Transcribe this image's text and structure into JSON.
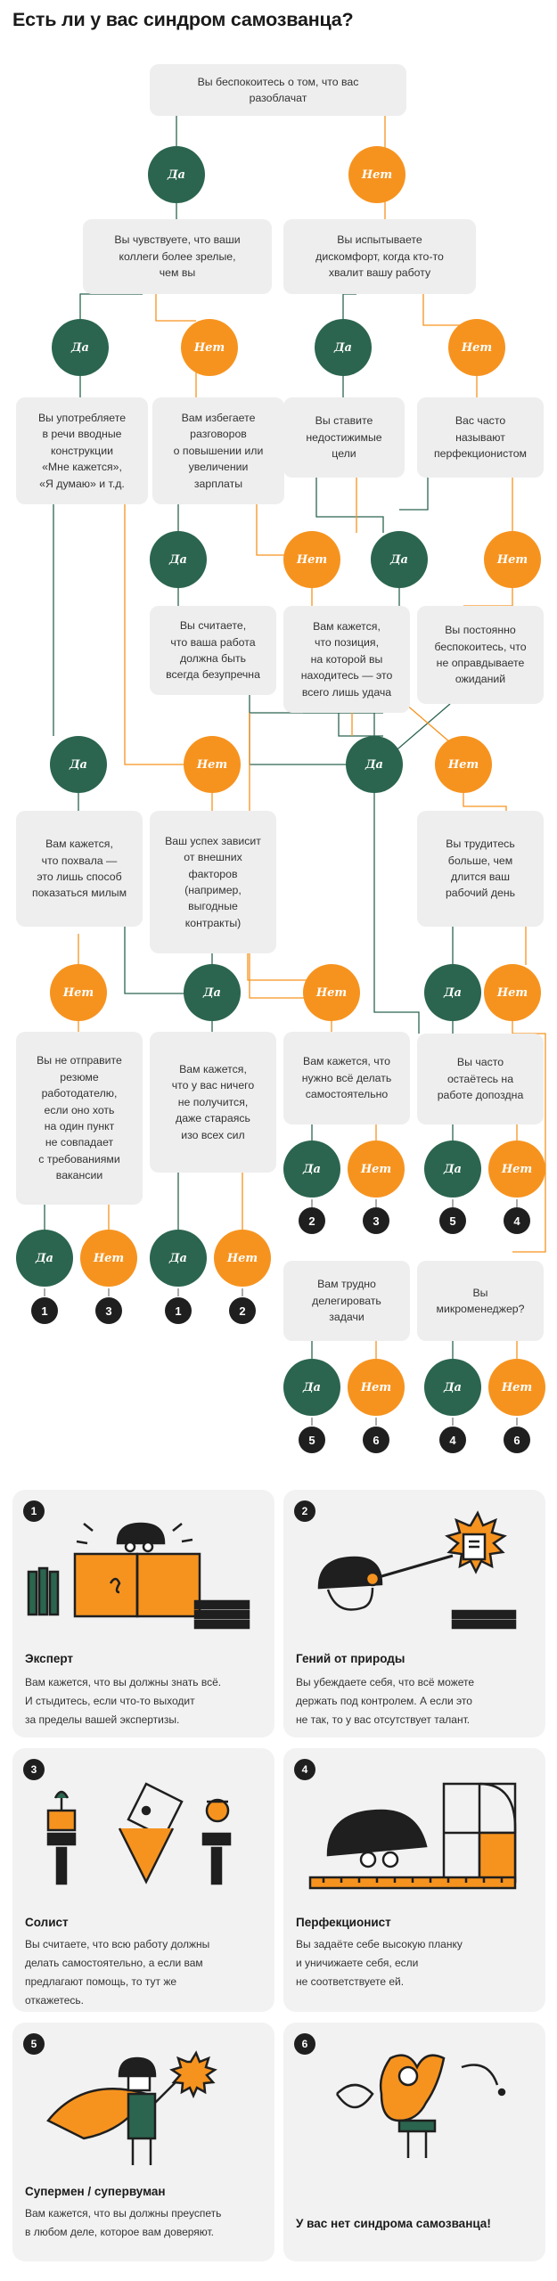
{
  "title": "Есть ли у вас синдром самозванца?",
  "labels": {
    "yes": "Да",
    "no": "Нет"
  },
  "colors": {
    "yes": "#2b654f",
    "no": "#f6931f",
    "box": "#eeeeee",
    "badge": "#1f1f1f"
  },
  "questions": {
    "q1": "Вы беспокоитесь о том, что вас\nразоблачат",
    "q2": "Вы чувствуете, что ваши\nколлеги более зрелые,\nчем вы",
    "q3": "Вы испытываете\nдискомфорт, когда кто-то\nхвалит вашу работу",
    "q4": "Вы употребляете\nв речи вводные\nконструкции\n«Мне кажется»,\n«Я думаю» и т.д.",
    "q5": "Вам избегаете\nразговоров\nо повышении или\nувеличении\nзарплаты",
    "q6": "Вы ставите\nнедостижимые\nцели",
    "q7": "Вас часто\nназывают\nперфекционистом",
    "q8": "Вы считаете,\nчто ваша работа\nдолжна быть\nвсегда безупречна",
    "q9": "Вам кажется,\nчто позиция,\nна которой вы\nнаходитесь — это\nвсего лишь удача",
    "q10": "Вы постоянно\nбеспокоитесь, что\nне оправдываете\nожиданий",
    "q11": "Вам кажется,\nчто похвала —\nэто лишь способ\nпоказаться милым",
    "q12": "Ваш успех зависит\nот внешних\nфакторов\n(например,\nвыгодные\nконтракты)",
    "q13": "Вы трудитесь\nбольше, чем\nдлится ваш\nрабочий день",
    "q14": "Вы не отправите\nрезюме\nработодателю,\nесли оно хоть\nна один пункт\nне совпадает\nс требованиями\nвакансии",
    "q15": "Вам кажется,\nчто у вас ничего\nне получится,\nдаже стараясь\nизо всех сил",
    "q16": "Вам кажется, что\nнужно всё делать\nсамостоятельно",
    "q17": "Вы часто\nостаётесь на\nработе допоздна",
    "q18": "Вам трудно\nделегировать\nзадачи",
    "q19": "Вы\nмикроменеджер?"
  },
  "results": {
    "q14": [
      "1",
      "3"
    ],
    "q15": [
      "1",
      "2"
    ],
    "q16": [
      "2",
      "3"
    ],
    "q17": [
      "5",
      "4"
    ],
    "q18": [
      "5",
      "6"
    ],
    "q19": [
      "4",
      "6"
    ]
  },
  "cards": [
    {
      "number": "1",
      "title": "Эксперт",
      "text": "Вам кажется, что вы должны знать всё.\nИ стыдитесь, если что-то выходит\nза пределы вашей экспертизы.",
      "icon": "expert-illustration"
    },
    {
      "number": "2",
      "title": "Гений от природы",
      "text": "Вы убеждаете себя, что всё можете\nдержать под контролем. А если это\nне так, то у вас отсутствует талант.",
      "icon": "genius-illustration"
    },
    {
      "number": "3",
      "title": "Солист",
      "text": "Вы считаете, что всю работу должны\nделать самостоятельно, а если вам\nпредлагают помощь, то тут же\nоткажетесь.",
      "icon": "soloist-illustration"
    },
    {
      "number": "4",
      "title": "Перфекционист",
      "text": "Вы задаёте себе высокую планку\nи уничижаете себя, если\nне соответствуете ей.",
      "icon": "perfectionist-illustration"
    },
    {
      "number": "5",
      "title": "Супермен / супервуман",
      "text": "Вам кажется, что вы должны преуспеть\nв любом деле, которое вам доверяют.",
      "icon": "superman-illustration"
    },
    {
      "number": "6",
      "title": "У вас нет синдрома самозванца!",
      "text": "",
      "icon": "ok-hand-illustration"
    }
  ]
}
